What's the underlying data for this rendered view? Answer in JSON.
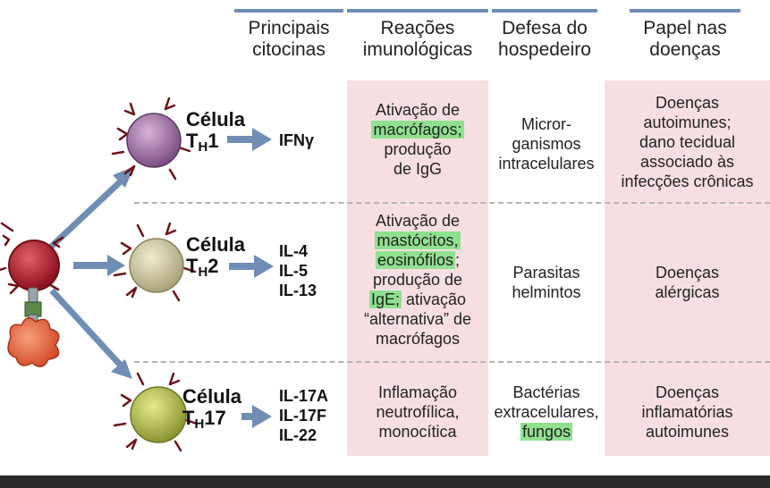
{
  "headers": {
    "cytokines": [
      "Principais",
      "citocinas"
    ],
    "reactions": [
      "Reações",
      "imunológicas"
    ],
    "defense": [
      "Defesa do",
      "hospedeiro"
    ],
    "disease": [
      "Papel nas",
      "doenças"
    ]
  },
  "rows": [
    {
      "cell_word": "Célula",
      "cell_main": "T",
      "cell_sub": "H",
      "cell_num": "1",
      "cytokines": [
        "IFNγ"
      ],
      "reactions": [
        {
          "parts": [
            {
              "t": "Ativação de",
              "hl": false
            }
          ]
        },
        {
          "parts": [
            {
              "t": "macrófagos;",
              "hl": true
            }
          ]
        },
        {
          "parts": [
            {
              "t": "produção",
              "hl": false
            }
          ]
        },
        {
          "parts": [
            {
              "t": "de IgG",
              "hl": false
            }
          ]
        }
      ],
      "defense": [
        {
          "parts": [
            {
              "t": "Micror-",
              "hl": false
            }
          ]
        },
        {
          "parts": [
            {
              "t": "ganismos",
              "hl": false
            }
          ]
        },
        {
          "parts": [
            {
              "t": "intracelulares",
              "hl": false
            }
          ]
        }
      ],
      "disease": [
        "Doenças",
        "autoimunes;",
        "dano tecidual",
        "associado às",
        "infecções crônicas"
      ]
    },
    {
      "cell_word": "Célula",
      "cell_main": "T",
      "cell_sub": "H",
      "cell_num": "2",
      "cytokines": [
        "IL-4",
        "IL-5",
        "IL-13"
      ],
      "reactions": [
        {
          "parts": [
            {
              "t": "Ativação de",
              "hl": false
            }
          ]
        },
        {
          "parts": [
            {
              "t": "mastócitos,",
              "hl": true
            }
          ]
        },
        {
          "parts": [
            {
              "t": "eosinófilos",
              "hl": true
            },
            {
              "t": ";",
              "hl": false
            }
          ]
        },
        {
          "parts": [
            {
              "t": "produção de",
              "hl": false
            }
          ]
        },
        {
          "parts": [
            {
              "t": "IgE;",
              "hl": true
            },
            {
              "t": " ativação",
              "hl": false
            }
          ]
        },
        {
          "parts": [
            {
              "t": "“alternativa” de",
              "hl": false
            }
          ]
        },
        {
          "parts": [
            {
              "t": "macrófagos",
              "hl": false
            }
          ]
        }
      ],
      "defense": [
        {
          "parts": [
            {
              "t": "Parasitas",
              "hl": false
            }
          ]
        },
        {
          "parts": [
            {
              "t": "helmintos",
              "hl": false
            }
          ]
        }
      ],
      "disease": [
        "Doenças",
        "alérgicas"
      ]
    },
    {
      "cell_word": "Célula",
      "cell_main": "T",
      "cell_sub": "H",
      "cell_num": "17",
      "cytokines": [
        "IL-17A",
        "IL-17F",
        "IL-22"
      ],
      "reactions": [
        {
          "parts": [
            {
              "t": "Inflamação",
              "hl": false
            }
          ]
        },
        {
          "parts": [
            {
              "t": "neutrofílica,",
              "hl": false
            }
          ]
        },
        {
          "parts": [
            {
              "t": "monocítica",
              "hl": false
            }
          ]
        }
      ],
      "defense": [
        {
          "parts": [
            {
              "t": "Bactérias",
              "hl": false
            }
          ]
        },
        {
          "parts": [
            {
              "t": "extracelulares,",
              "hl": false
            }
          ]
        },
        {
          "parts": [
            {
              "t": "fungos",
              "hl": true
            }
          ]
        }
      ],
      "disease": [
        "Doenças",
        "inflamatórias",
        "autoimunes"
      ]
    }
  ],
  "colors": {
    "header_bar": "#6f8db5",
    "pink_column": "#f7dfe1",
    "highlight": "#8fe08f",
    "arrow": "#6f8db5",
    "naive_cell": "#b01d2a",
    "th1_cell": "#a77aa7",
    "th2_cell": "#d8d3a6",
    "th17_cell": "#b8c24a",
    "apc_cell": "#e8603a",
    "receptor": "#6e1218"
  },
  "icons": [
    "naive-t-cell-icon",
    "antigen-presenting-cell-icon",
    "th1-cell-icon",
    "th2-cell-icon",
    "th17-cell-icon",
    "differentiation-arrow-icon",
    "secretion-arrow-icon"
  ]
}
